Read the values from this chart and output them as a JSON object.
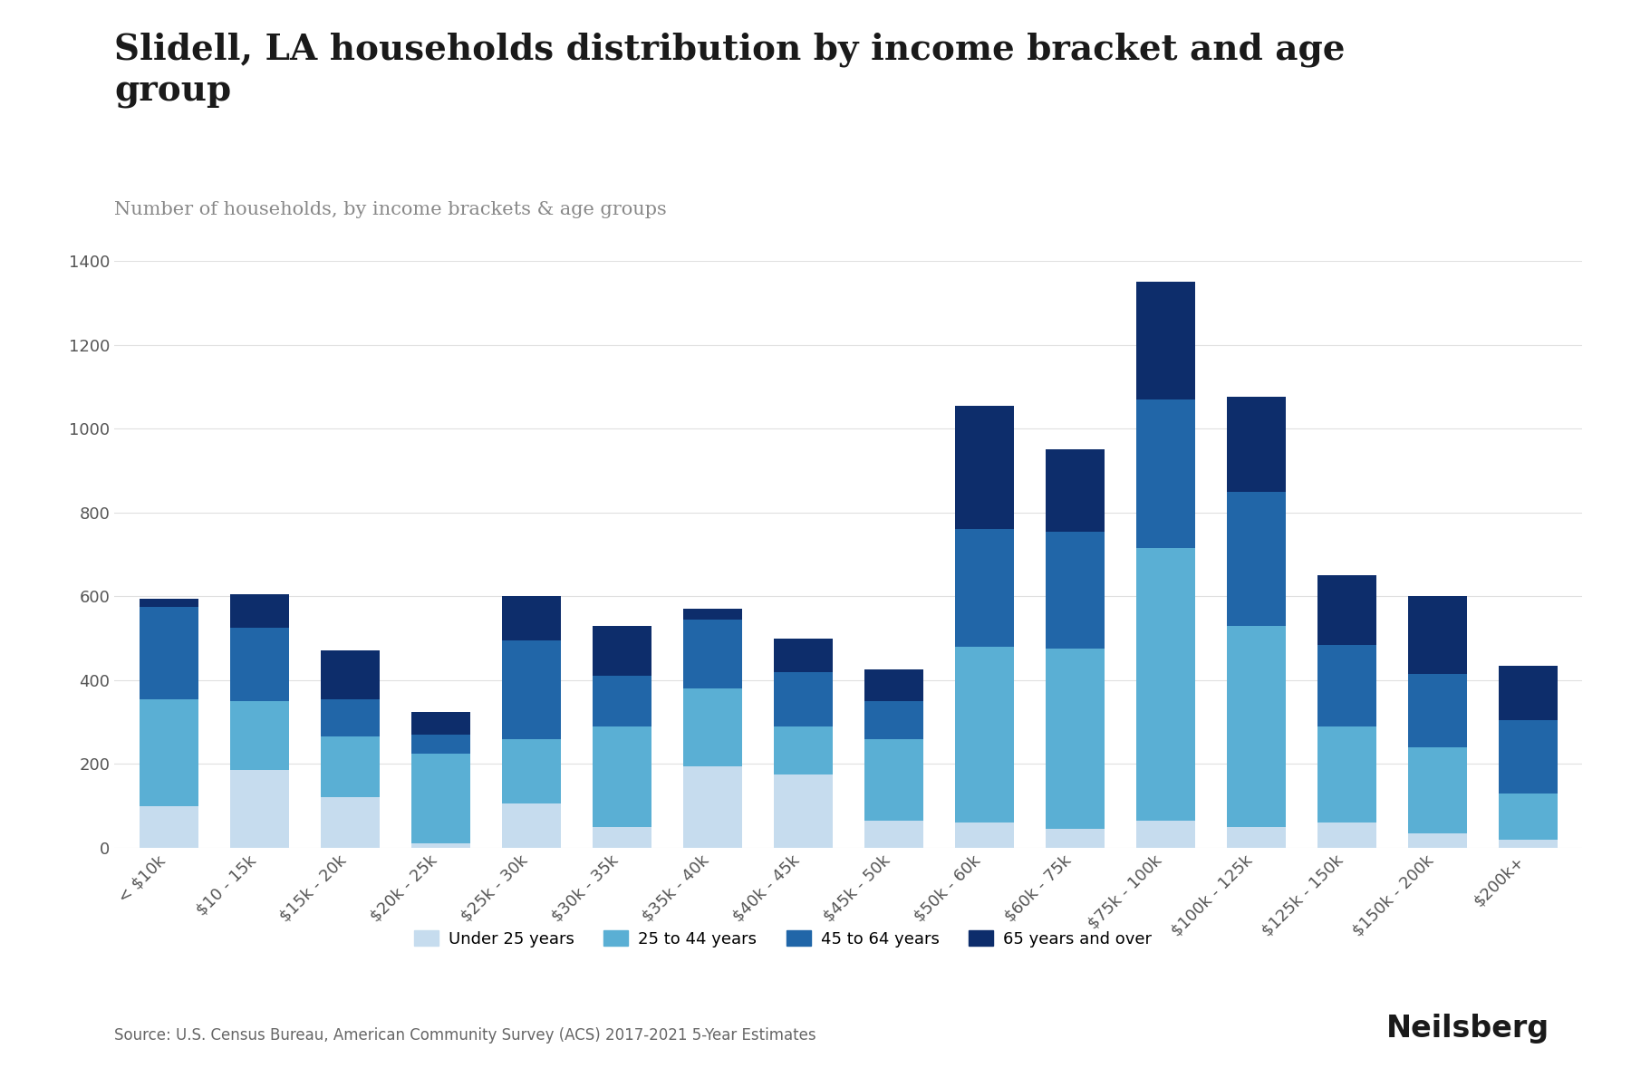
{
  "title": "Slidell, LA households distribution by income bracket and age\ngroup",
  "subtitle": "Number of households, by income brackets & age groups",
  "source": "Source: U.S. Census Bureau, American Community Survey (ACS) 2017-2021 5-Year Estimates",
  "categories": [
    "< $10k",
    "$10 - 15k",
    "$15k - 20k",
    "$20k - 25k",
    "$25k - 30k",
    "$30k - 35k",
    "$35k - 40k",
    "$40k - 45k",
    "$45k - 50k",
    "$50k - 60k",
    "$60k - 75k",
    "$75k - 100k",
    "$100k - 125k",
    "$125k - 150k",
    "$150k - 200k",
    "$200k+"
  ],
  "age_groups": [
    "Under 25 years",
    "25 to 44 years",
    "45 to 64 years",
    "65 years and over"
  ],
  "colors": [
    "#c6dcee",
    "#5aafd4",
    "#2166a8",
    "#0d2d6b"
  ],
  "data": {
    "Under 25 years": [
      100,
      185,
      120,
      10,
      105,
      50,
      195,
      175,
      65,
      60,
      45,
      65,
      50,
      60,
      35,
      20
    ],
    "25 to 44 years": [
      255,
      165,
      145,
      215,
      155,
      240,
      185,
      115,
      195,
      420,
      430,
      650,
      480,
      230,
      205,
      110
    ],
    "45 to 64 years": [
      220,
      175,
      90,
      45,
      235,
      120,
      165,
      130,
      90,
      280,
      280,
      355,
      320,
      195,
      175,
      175
    ],
    "65 years and over": [
      20,
      80,
      115,
      55,
      105,
      120,
      25,
      80,
      75,
      295,
      195,
      280,
      225,
      165,
      185,
      130
    ]
  },
  "ylim": [
    0,
    1400
  ],
  "yticks": [
    0,
    200,
    400,
    600,
    800,
    1000,
    1200,
    1400
  ],
  "background_color": "#ffffff",
  "title_fontsize": 28,
  "subtitle_fontsize": 15,
  "axis_fontsize": 13,
  "legend_fontsize": 13,
  "source_fontsize": 12
}
